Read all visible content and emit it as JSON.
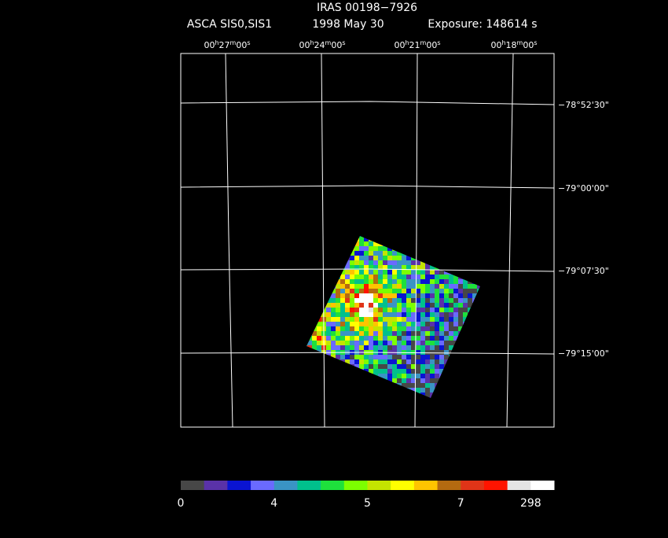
{
  "title": "IRAS 00198−7926",
  "subtitle": [
    "ASCA SIS0,SIS1",
    "1998 May 30",
    "Exposure: 148614 s"
  ],
  "ra_labels": [
    [
      "00",
      "h",
      "27",
      "m",
      "00",
      "s"
    ],
    [
      "00",
      "h",
      "24",
      "m",
      "00",
      "s"
    ],
    [
      "00",
      "h",
      "21",
      "m",
      "00",
      "s"
    ],
    [
      "00",
      "h",
      "18",
      "m",
      "00",
      "s"
    ]
  ],
  "dec_labels": [
    "−78°52'30\"",
    "−79°00'00\"",
    "−79°07'30\"",
    "−79°15'00\""
  ],
  "colorbar": {
    "colors": [
      "#474747",
      "#5a32a8",
      "#0a14d2",
      "#6a6aff",
      "#3a94c4",
      "#00c08c",
      "#1ee03c",
      "#7cff00",
      "#c4e400",
      "#ffff00",
      "#ffc400",
      "#b46a10",
      "#e03418",
      "#ff1400",
      "#e4e4e4",
      "#ffffff"
    ],
    "labels": [
      "0",
      "4",
      "5",
      "7",
      "298"
    ]
  }
}
